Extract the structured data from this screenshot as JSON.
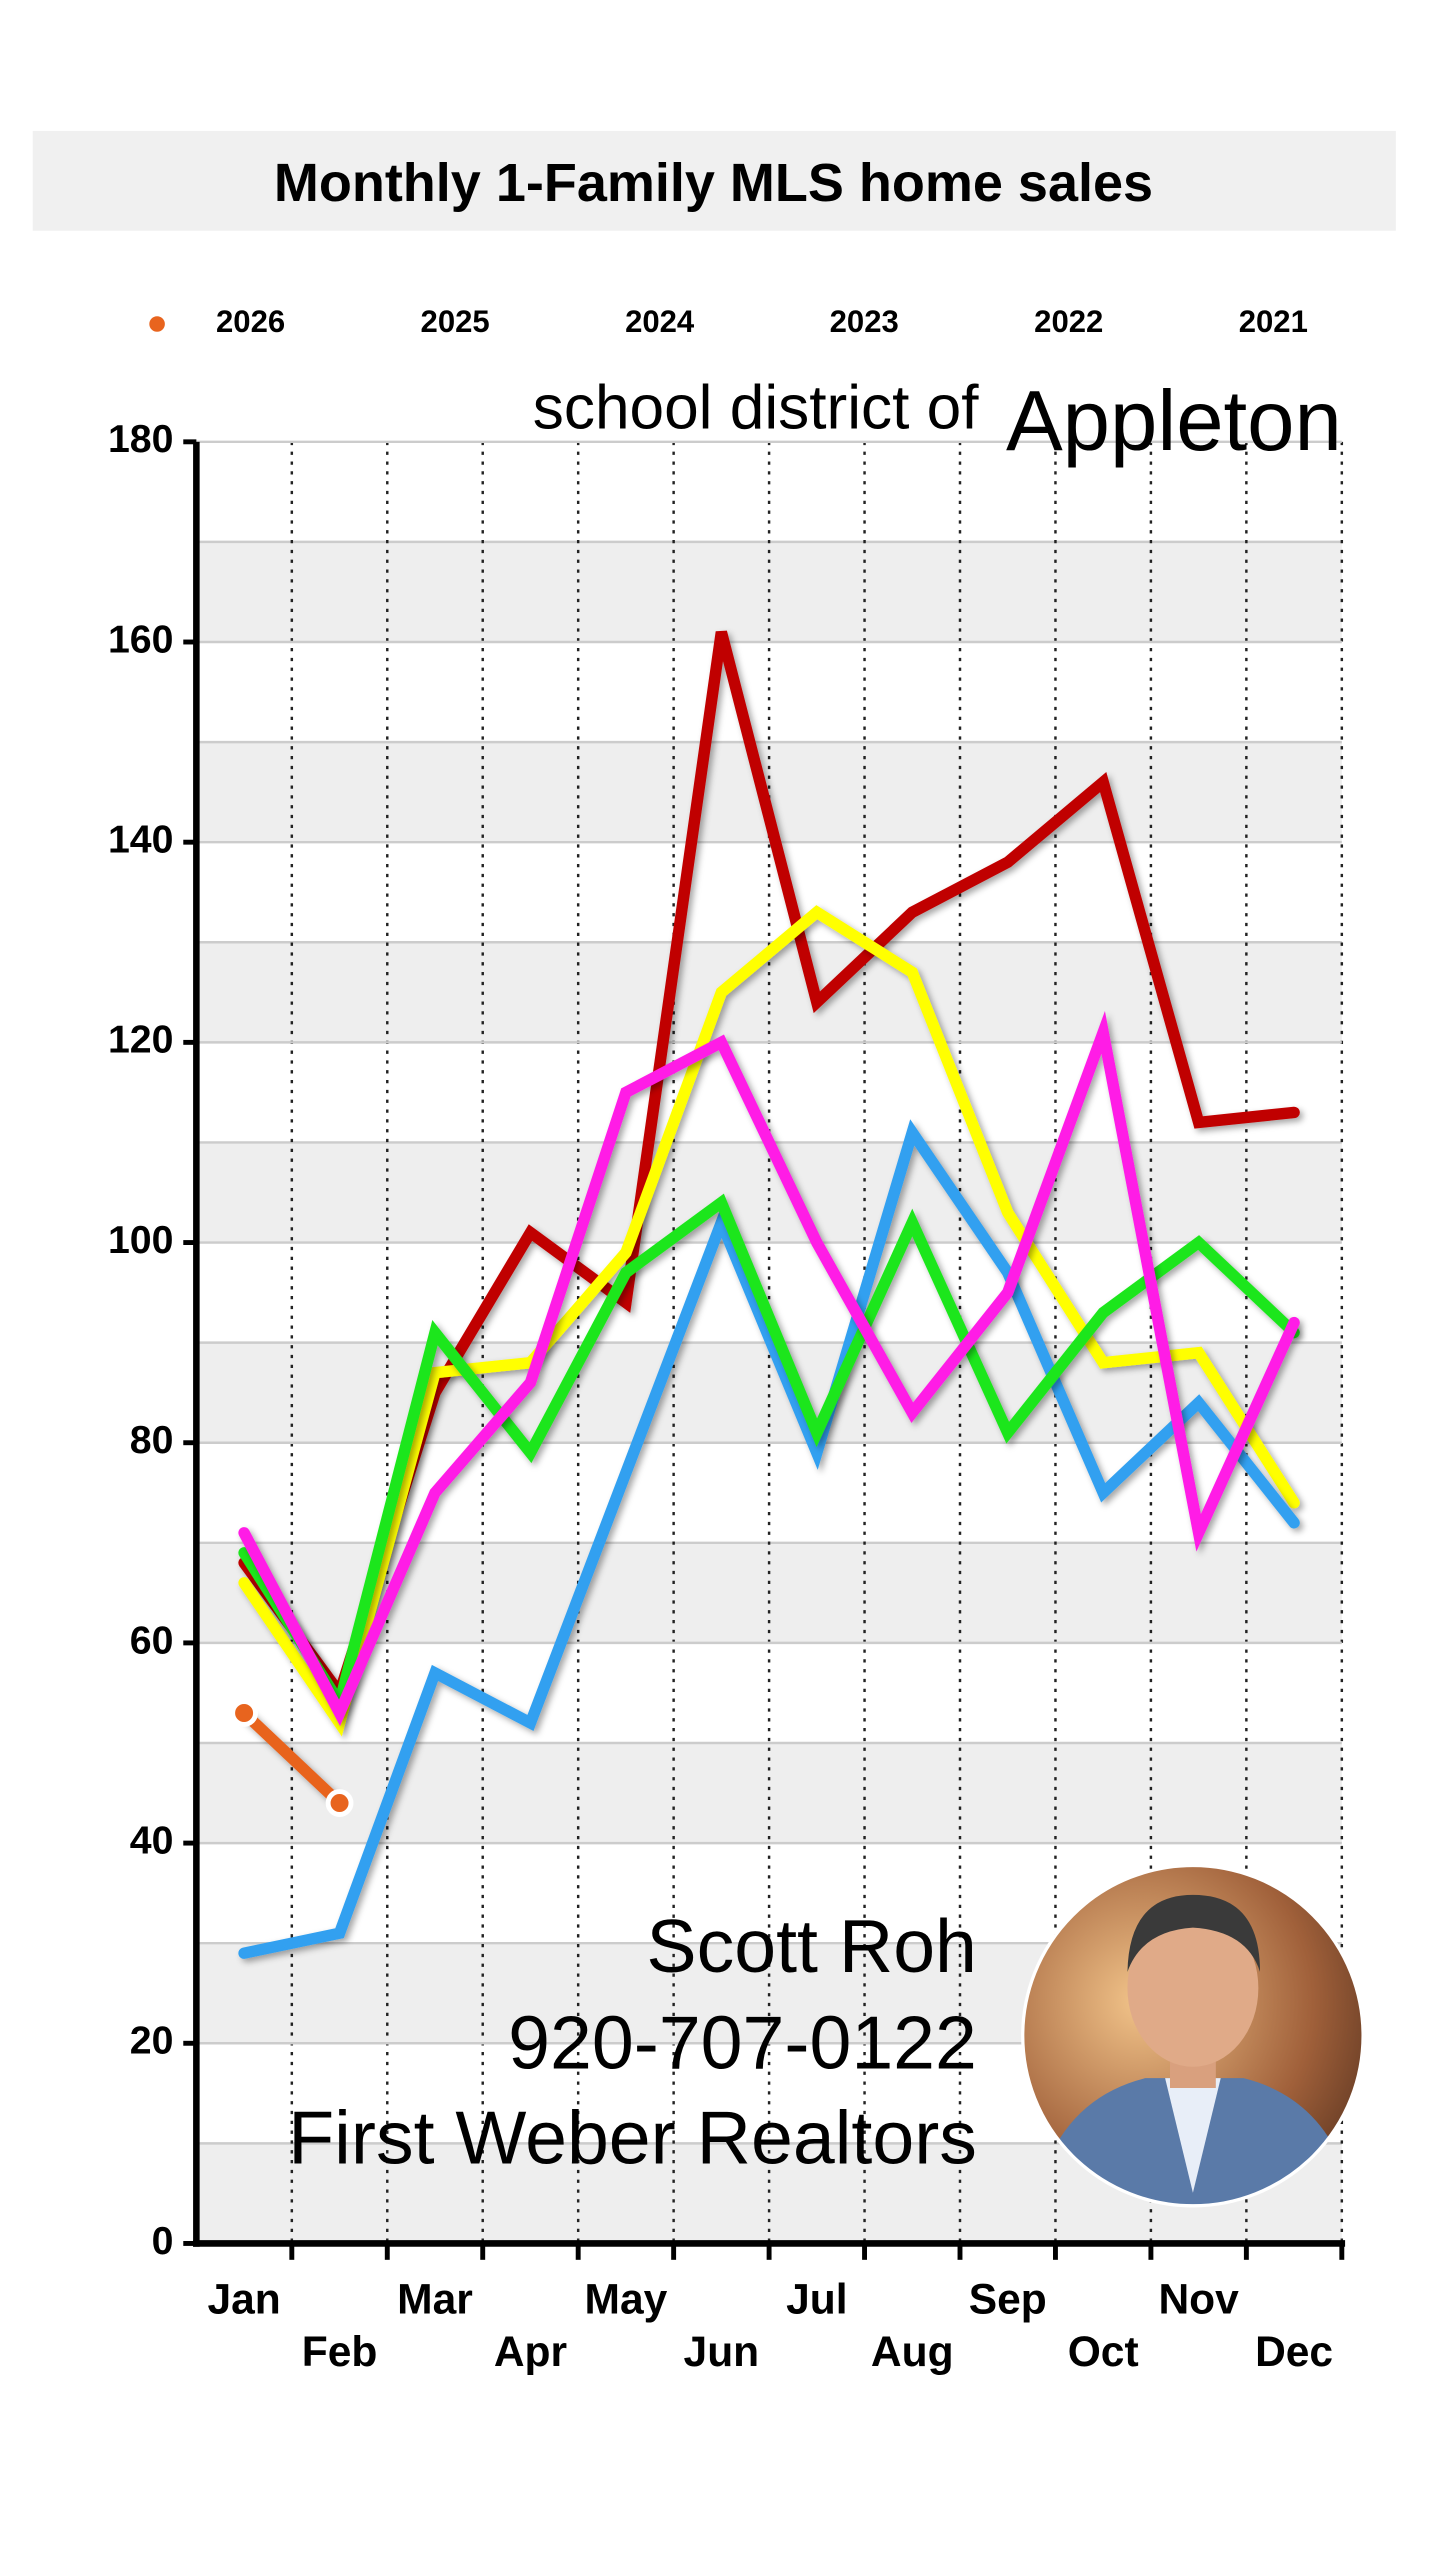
{
  "chart_data": {
    "type": "line",
    "title": "Monthly 1-Family MLS home sales",
    "annotations": [
      "school district of",
      "Appleton",
      "Scott Roh",
      "920-707-0122",
      "First Weber Realtors"
    ],
    "categories": [
      "Jan",
      "Feb",
      "Mar",
      "Apr",
      "May",
      "Jun",
      "Jul",
      "Aug",
      "Sep",
      "Oct",
      "Nov",
      "Dec"
    ],
    "ylim": [
      0,
      180
    ],
    "yticks": [
      0,
      20,
      40,
      60,
      80,
      100,
      120,
      140,
      160,
      180
    ],
    "grid": true,
    "legend": "top",
    "series": [
      {
        "name": "2026",
        "color": "#e8641e",
        "marker": "circle",
        "values": [
          53,
          44,
          null,
          null,
          null,
          null,
          null,
          null,
          null,
          null,
          null,
          null
        ]
      },
      {
        "name": "2025",
        "color": "#ff1ee6",
        "values": [
          71,
          53,
          75,
          86,
          115,
          120,
          100,
          83,
          95,
          121,
          71,
          92
        ]
      },
      {
        "name": "2024",
        "color": "#1ee61e",
        "values": [
          69,
          54,
          91,
          79,
          97,
          104,
          81,
          102,
          81,
          93,
          100,
          91
        ]
      },
      {
        "name": "2023",
        "color": "#32a0f0",
        "values": [
          29,
          31,
          57,
          52,
          77,
          102,
          79,
          111,
          97,
          75,
          84,
          72
        ]
      },
      {
        "name": "2022",
        "color": "#ffff00",
        "values": [
          66,
          52,
          87,
          88,
          99,
          125,
          133,
          127,
          103,
          88,
          89,
          74
        ]
      },
      {
        "name": "2021",
        "color": "#c00000",
        "values": [
          68,
          55,
          85,
          101,
          94,
          161,
          124,
          133,
          138,
          146,
          112,
          113
        ]
      }
    ]
  }
}
